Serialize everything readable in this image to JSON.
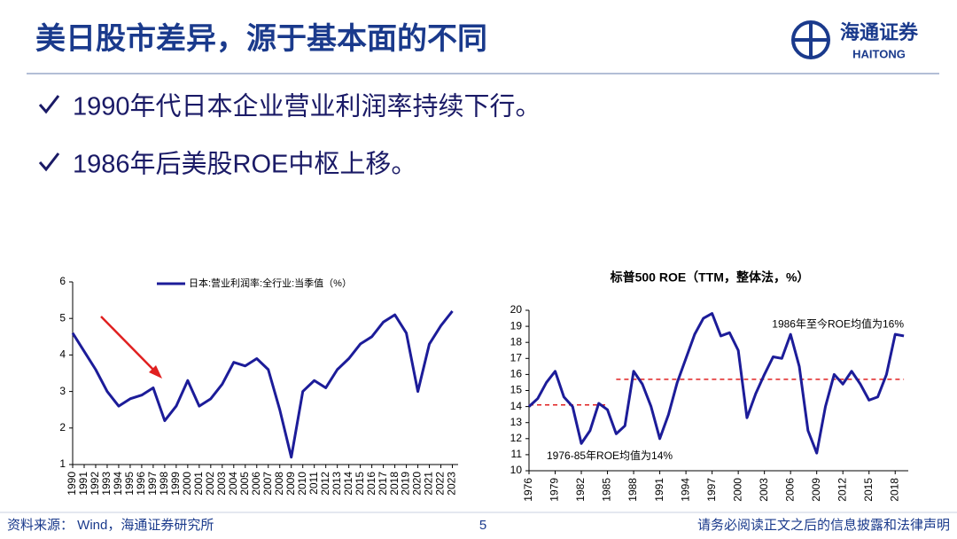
{
  "page": {
    "title": "美日股市差异，源于基本面的不同",
    "logo_cn": "海通证券",
    "logo_en": "HAITONG",
    "bullets": [
      "1990年代日本企业营业利润率持续下行。",
      "1986年后美股ROE中枢上移。"
    ],
    "source": "资料来源：  Wind，海通证券研究所",
    "page_number": "5",
    "disclaimer": "请务必阅读正文之后的信息披露和法律声明"
  },
  "chart_data": [
    {
      "type": "line",
      "x": [
        1990,
        1991,
        1992,
        1993,
        1994,
        1995,
        1996,
        1997,
        1998,
        1999,
        2000,
        2001,
        2002,
        2003,
        2004,
        2005,
        2006,
        2007,
        2008,
        2009,
        2010,
        2011,
        2012,
        2013,
        2014,
        2015,
        2016,
        2017,
        2018,
        2019,
        2020,
        2021,
        2022,
        2023
      ],
      "series": [
        {
          "name": "日本:营业利润率:全行业:当季值（%）",
          "color": "#1c1c99",
          "values": [
            4.6,
            4.1,
            3.6,
            3.0,
            2.6,
            2.8,
            2.9,
            3.1,
            2.2,
            2.6,
            3.3,
            2.6,
            2.8,
            3.2,
            3.8,
            3.7,
            3.9,
            3.6,
            2.5,
            1.2,
            3.0,
            3.3,
            3.1,
            3.6,
            3.9,
            4.3,
            4.5,
            4.9,
            5.1,
            4.6,
            3.0,
            4.3,
            4.8,
            5.2
          ]
        }
      ],
      "xlim": [
        1990,
        2023.5
      ],
      "xticks": [
        1990,
        1991,
        1992,
        1993,
        1994,
        1995,
        1996,
        1997,
        1998,
        1999,
        2000,
        2001,
        2002,
        2003,
        2004,
        2005,
        2006,
        2007,
        2008,
        2009,
        2010,
        2011,
        2012,
        2013,
        2014,
        2015,
        2016,
        2017,
        2018,
        2019,
        2020,
        2021,
        2022,
        2023
      ],
      "ylim": [
        1,
        6
      ],
      "yticks": [
        1,
        2,
        3,
        4,
        5,
        6
      ],
      "legend": "top"
    },
    {
      "type": "line",
      "title": "标普500 ROE（TTM，整体法，%）",
      "x": [
        1976,
        1977,
        1978,
        1979,
        1980,
        1981,
        1982,
        1983,
        1984,
        1985,
        1986,
        1987,
        1988,
        1989,
        1990,
        1991,
        1992,
        1993,
        1994,
        1995,
        1996,
        1997,
        1998,
        1999,
        2000,
        2001,
        2002,
        2003,
        2004,
        2005,
        2006,
        2007,
        2008,
        2009,
        2010,
        2011,
        2012,
        2013,
        2014,
        2015,
        2016,
        2017,
        2018,
        2019
      ],
      "series": [
        {
          "color": "#1c1c99",
          "values": [
            14.0,
            14.5,
            15.5,
            16.2,
            14.6,
            14.0,
            11.7,
            12.5,
            14.2,
            13.8,
            12.3,
            12.8,
            16.2,
            15.4,
            14.0,
            12.0,
            13.5,
            15.5,
            17.0,
            18.5,
            19.5,
            19.8,
            18.4,
            18.6,
            17.5,
            13.3,
            14.8,
            16.0,
            17.1,
            17.0,
            18.5,
            16.5,
            12.5,
            11.1,
            14.0,
            16.0,
            15.4,
            16.2,
            15.4,
            14.4,
            14.6,
            16.0,
            18.5,
            18.4
          ]
        }
      ],
      "xlim": [
        1976,
        2019.5
      ],
      "xticks": [
        1976,
        1979,
        1982,
        1985,
        1988,
        1991,
        1994,
        1997,
        2000,
        2003,
        2006,
        2009,
        2012,
        2015,
        2018
      ],
      "ylim": [
        10,
        20
      ],
      "yticks": [
        10,
        11,
        12,
        13,
        14,
        15,
        16,
        17,
        18,
        19,
        20
      ],
      "reference_lines": [
        {
          "value": 14.1,
          "from": 1976,
          "to": 1985,
          "color": "#e02020",
          "label": "1976-85年ROE均值为14%"
        },
        {
          "value": 15.7,
          "from": 1986,
          "to": 2019,
          "color": "#e02020",
          "label": "1986年至今ROE均值为16%"
        }
      ]
    }
  ]
}
